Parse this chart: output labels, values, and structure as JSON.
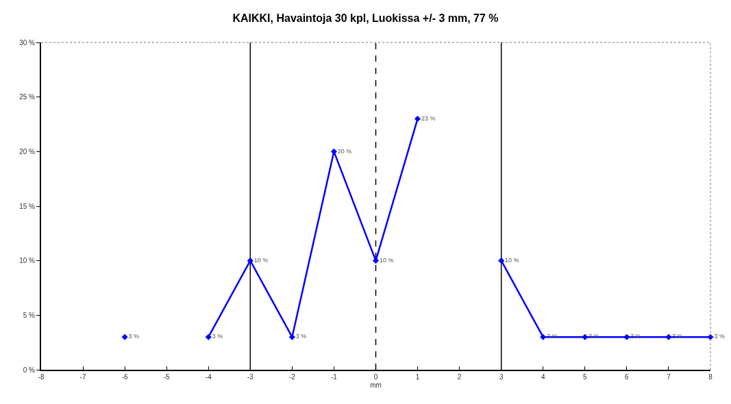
{
  "chart_data": {
    "type": "line",
    "title": "KAIKKI, Havaintoja 30 kpl, Luokissa +/- 3 mm, 77 %",
    "xlabel": "mm",
    "x": [
      -6,
      -5,
      -4,
      -3,
      -2,
      -1,
      0,
      1,
      2,
      3,
      4,
      5,
      6,
      7,
      8
    ],
    "series": [
      {
        "color": "#0000ff",
        "values": [
          3,
          null,
          3,
          10,
          3,
          20,
          10,
          23,
          null,
          10,
          3,
          3,
          3,
          3,
          3
        ],
        "value_labels": [
          "3 %",
          null,
          "3 %",
          "10 %",
          "3 %",
          "20 %",
          "10 %",
          "23 %",
          null,
          "10 %",
          "3 %",
          "3 %",
          "3 %",
          "3 %",
          "3 %"
        ]
      }
    ],
    "xlim": [
      -8,
      8
    ],
    "xticks": [
      -8,
      -7,
      -6,
      -5,
      -4,
      -3,
      -2,
      -1,
      0,
      1,
      2,
      3,
      4,
      5,
      6,
      7,
      8
    ],
    "ylim": [
      0,
      30
    ],
    "yticks": [
      {
        "value": 0,
        "label": "0 %"
      },
      {
        "value": 5,
        "label": "5 %"
      },
      {
        "value": 10,
        "label": "10 %"
      },
      {
        "value": 15,
        "label": "15 %"
      },
      {
        "value": 20,
        "label": "20 %"
      },
      {
        "value": 25,
        "label": "25 %"
      },
      {
        "value": 30,
        "label": "30 %"
      }
    ],
    "ref_lines": [
      {
        "axis": "x",
        "value": -3,
        "color": "#000000",
        "line_style": "solid"
      },
      {
        "axis": "x",
        "value": 0,
        "color": "#000000",
        "line_style": "dashed"
      },
      {
        "axis": "x",
        "value": 3,
        "color": "#000000",
        "line_style": "solid"
      }
    ],
    "marker": "diamond",
    "line_style": "solid"
  }
}
